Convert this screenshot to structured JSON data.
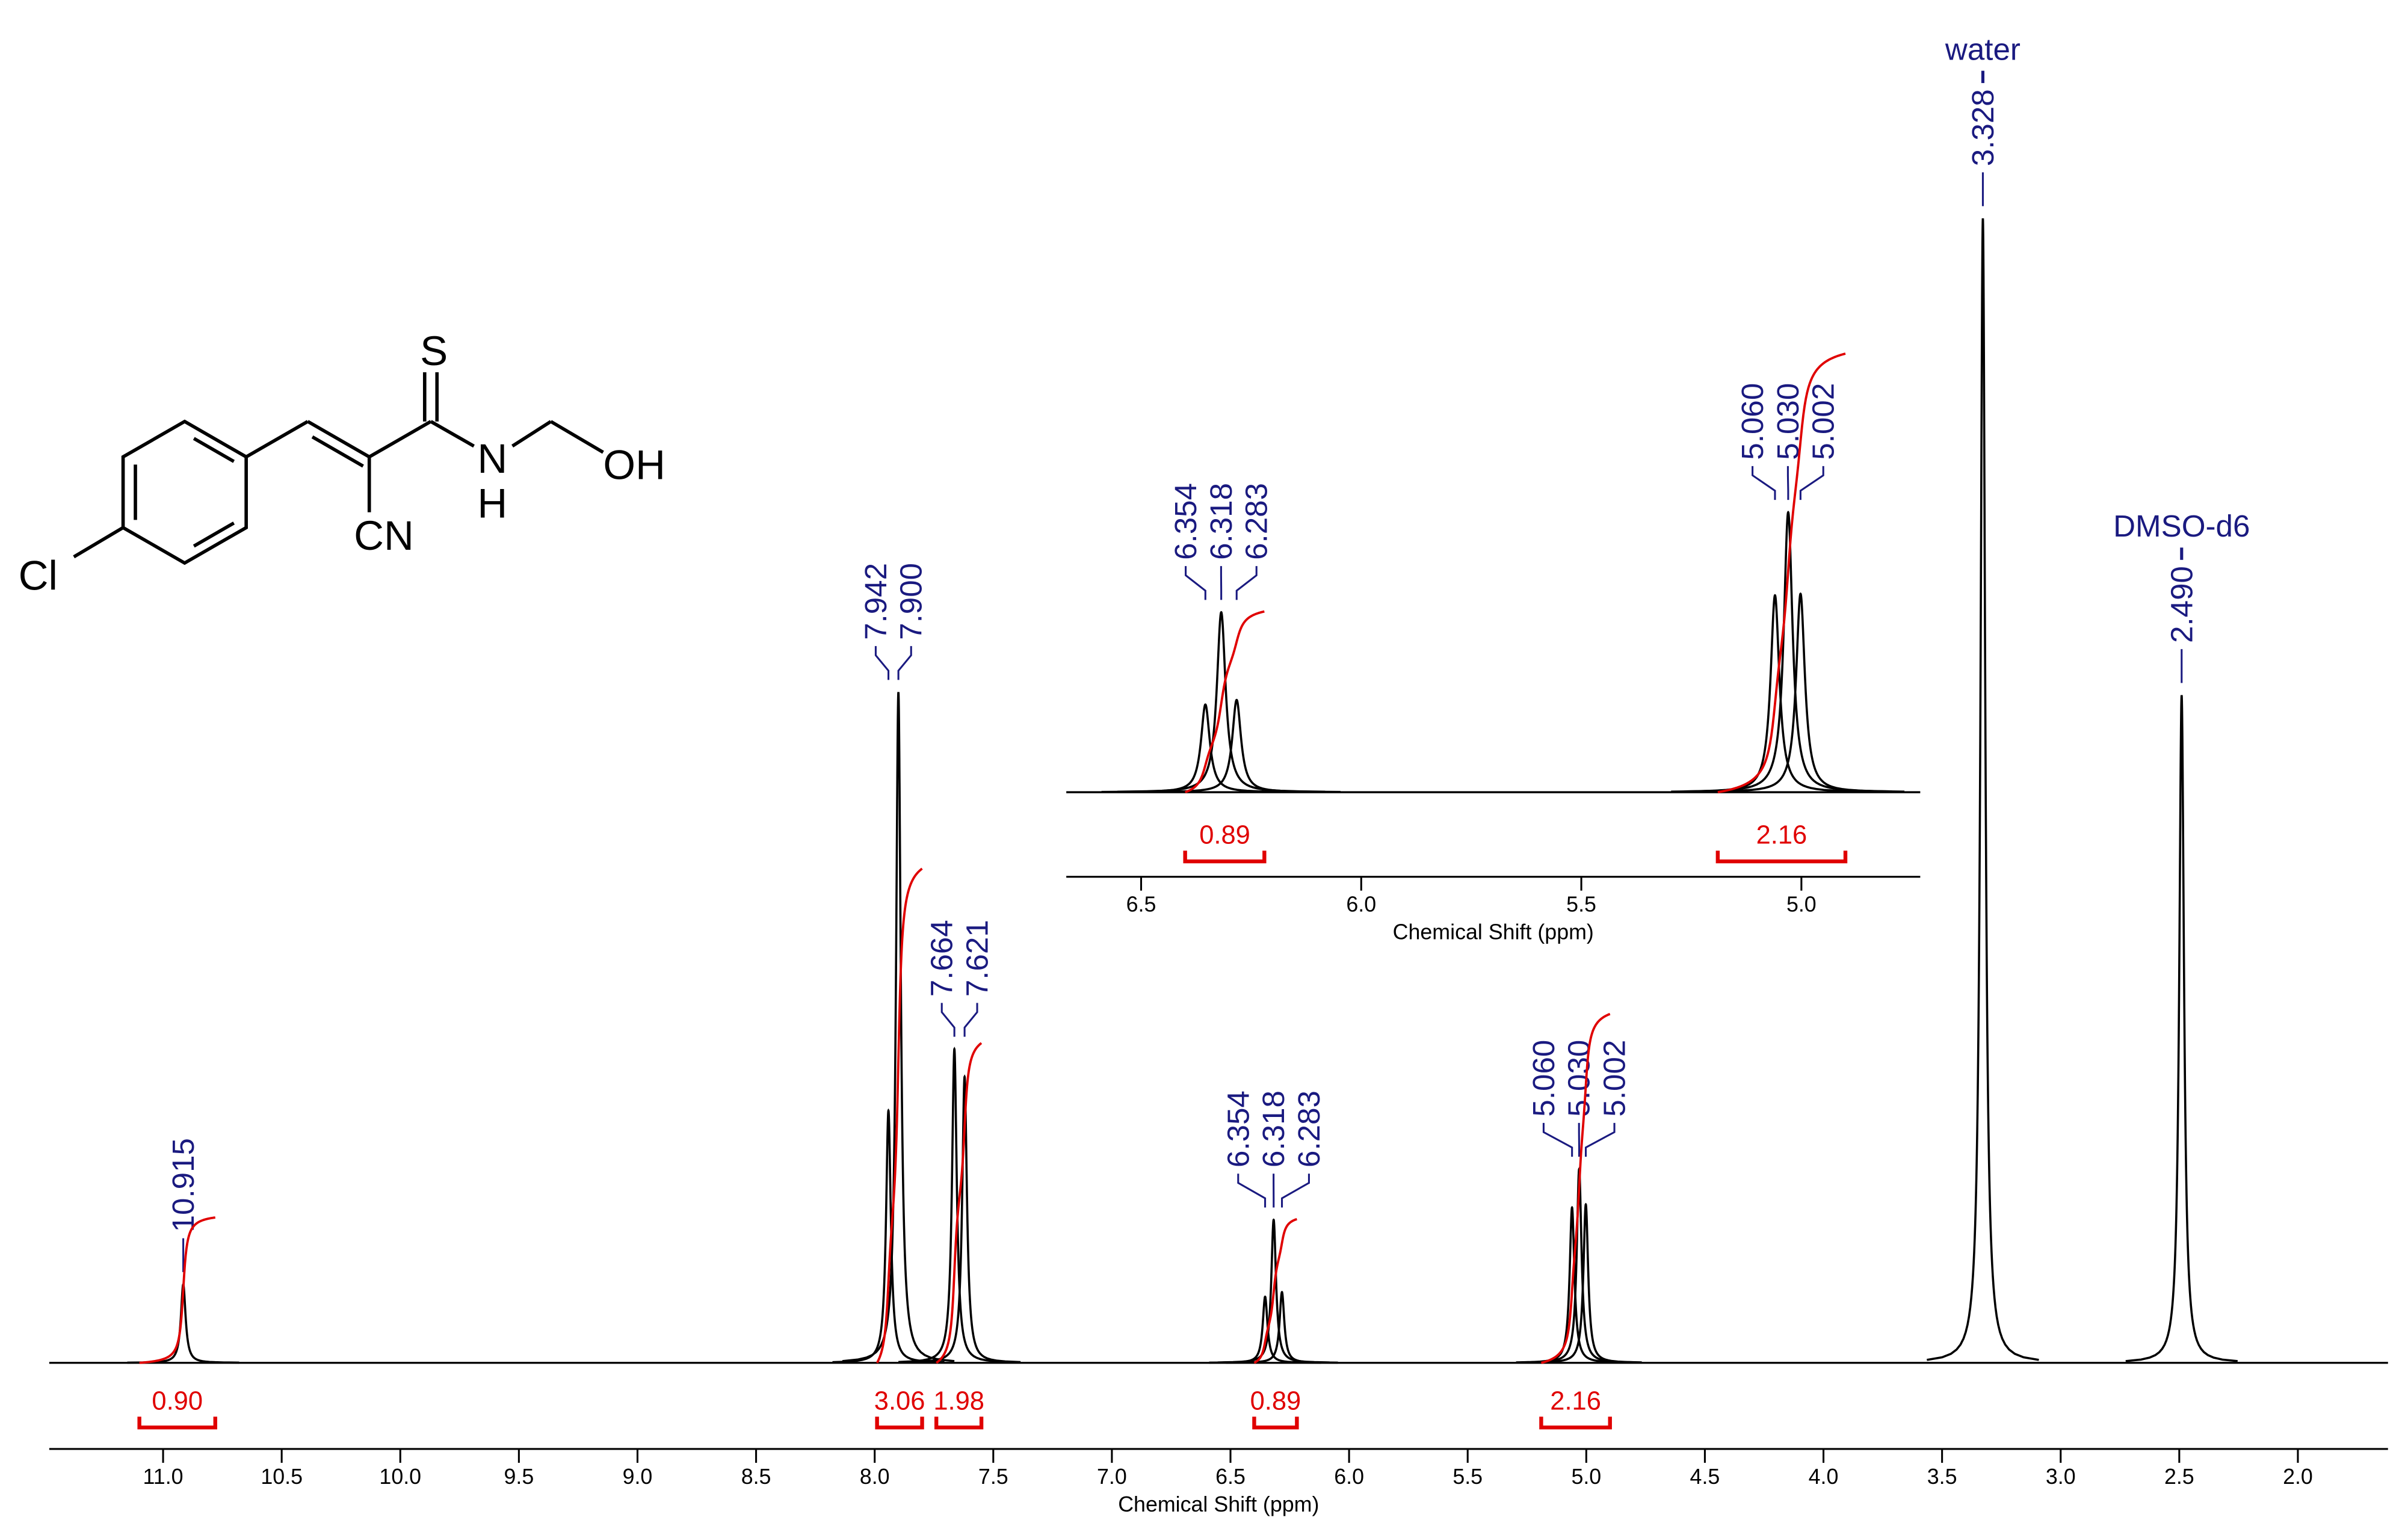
{
  "structure": {
    "atoms": [
      "S",
      "N",
      "H",
      "OH",
      "CN",
      "Cl"
    ]
  },
  "chart_data": [
    {
      "type": "nmr",
      "x_label": "Chemical Shift (ppm)",
      "xlim": [
        11.48,
        1.62
      ],
      "xticks": [
        {
          "value": 11.0,
          "label": "11.0"
        },
        10.5,
        {
          "value": 10.0,
          "label": "10.0"
        },
        9.5,
        {
          "value": 9.0,
          "label": "9.0"
        },
        8.5,
        {
          "value": 8.0,
          "label": "8.0"
        },
        7.5,
        {
          "value": 7.0,
          "label": "7.0"
        },
        6.5,
        {
          "value": 6.0,
          "label": "6.0"
        },
        5.5,
        {
          "value": 5.0,
          "label": "5.0"
        },
        4.5,
        {
          "value": 4.0,
          "label": "4.0"
        },
        3.5,
        {
          "value": 3.0,
          "label": "3.0"
        },
        2.5,
        {
          "value": 2.0,
          "label": "2.0"
        }
      ],
      "ylim": [
        0,
        800
      ],
      "color": "#000000",
      "peaks": {
        "color": "#1a1a80",
        "x": [
          10.915,
          7.942,
          {
            "value": 7.9,
            "label": "7.900"
          },
          7.664,
          7.621,
          6.354,
          6.318,
          6.283,
          {
            "value": 5.06,
            "label": "5.060"
          },
          {
            "value": 5.03,
            "label": "5.030"
          },
          5.002,
          3.328,
          {
            "value": 2.49,
            "label": "2.490"
          }
        ],
        "values": [
          51,
          164,
          436,
          204,
          186,
          43,
          93,
          46,
          101,
          126,
          103,
          744,
          434
        ]
      },
      "integrals": {
        "color": "#e00000",
        "ranges": [
          [
            11.1,
            10.78
          ],
          [
            7.99,
            7.8
          ],
          [
            7.74,
            7.55
          ],
          [
            6.4,
            6.22
          ],
          [
            5.19,
            4.9
          ]
        ],
        "values": [
          {
            "value": 0.9,
            "label": "0.90"
          },
          3.06,
          1.98,
          0.89,
          2.16
        ]
      },
      "annotations": [
        {
          "text": "water",
          "x": 3.328
        },
        {
          "text": "DMSO-d6",
          "x": 2.49
        }
      ]
    },
    {
      "type": "nmr",
      "x_label": "Chemical Shift (ppm)",
      "xlim": [
        6.67,
        4.73
      ],
      "xticks": [
        6.5,
        {
          "value": 6.0,
          "label": "6.0"
        },
        5.5,
        {
          "value": 5.0,
          "label": "5.0"
        }
      ],
      "ylim": [
        0,
        300
      ],
      "color": "#000000",
      "peaks": {
        "color": "#1a1a80",
        "x": [
          6.354,
          6.318,
          6.283,
          {
            "value": 5.06,
            "label": "5.060"
          },
          {
            "value": 5.03,
            "label": "5.030"
          },
          5.002
        ],
        "values": [
          57,
          117,
          60,
          128,
          182,
          129
        ]
      },
      "integrals": {
        "color": "#e00000",
        "ranges": [
          [
            6.4,
            6.22
          ],
          [
            5.19,
            4.9
          ]
        ],
        "values": [
          0.89,
          2.16
        ]
      },
      "annotations": []
    }
  ]
}
